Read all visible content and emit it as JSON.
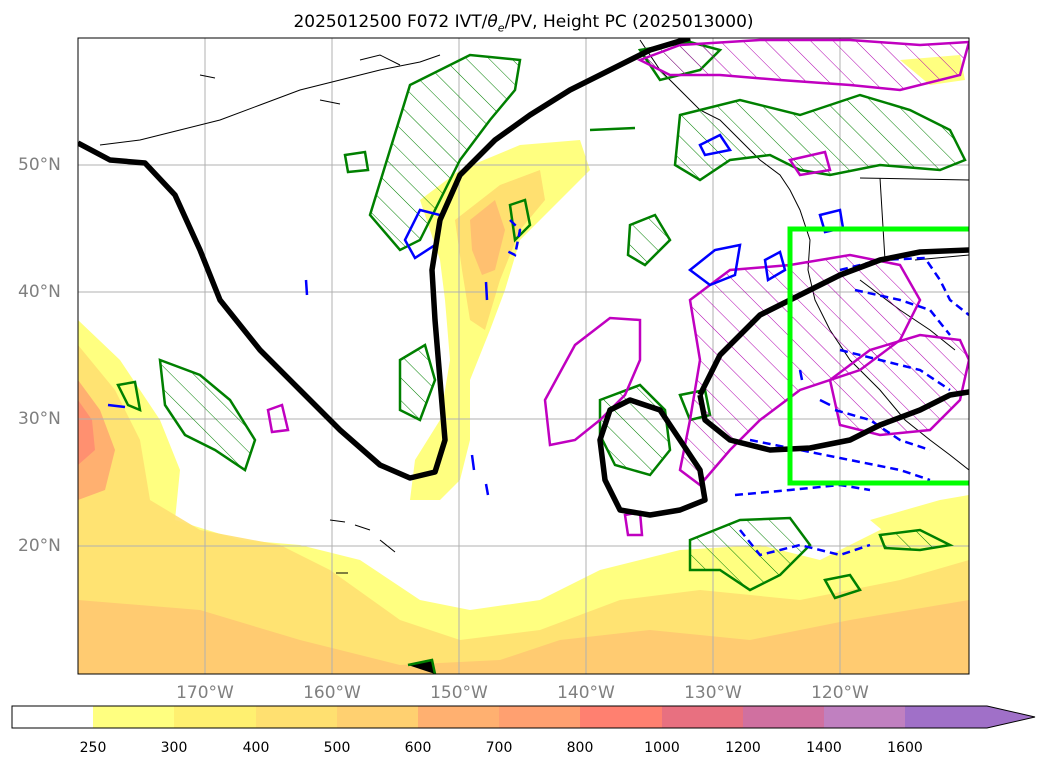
{
  "title": "2025012500 F072 IVT/θe/PV, Height PC (2025013000)",
  "title_parts": {
    "pre": "2025012500 F072 IVT/",
    "theta": "θ",
    "sub": "e",
    "post": "/PV, Height PC (2025013000)"
  },
  "axes": {
    "x_ticks": [
      "170°W",
      "160°W",
      "150°W",
      "140°W",
      "130°W",
      "120°W"
    ],
    "y_ticks": [
      "50°N",
      "40°N",
      "30°N",
      "20°N"
    ],
    "lon_range": [
      -180,
      -110
    ],
    "lat_range": [
      10,
      60
    ],
    "grid": true
  },
  "colorbar": {
    "labels": [
      "250",
      "300",
      "400",
      "500",
      "600",
      "700",
      "800",
      "1000",
      "1200",
      "1400",
      "1600"
    ],
    "colors": [
      "#ffffff",
      "#ffff80",
      "#fff070",
      "#ffe070",
      "#ffd070",
      "#ffb070",
      "#ffa070",
      "#ff8070",
      "#e87080",
      "#d070a0",
      "#c080c0",
      "#a070c8"
    ],
    "extend": "max"
  },
  "overlays": {
    "box_color": "#00ff00",
    "height_contour_color": "#000000",
    "pv_color": "#008000",
    "theta_e_color": "#c000c0",
    "ivt_low_color": "#0000ff"
  }
}
